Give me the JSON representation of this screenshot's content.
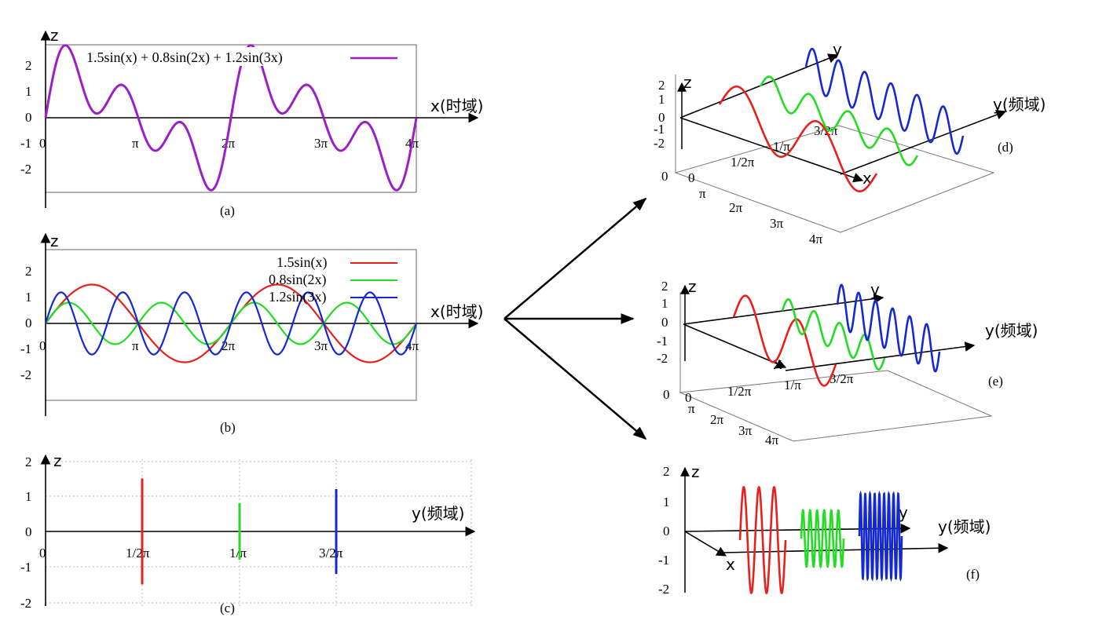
{
  "chart_data": [
    {
      "panel": "a",
      "type": "line",
      "caption": "(a)",
      "xlabel": "x(时域)",
      "ylabel": "z",
      "x_ticks": [
        "0",
        "π",
        "2π",
        "3π",
        "4π"
      ],
      "y_ticks": [
        "2",
        "1",
        "0",
        "-1",
        "-2"
      ],
      "xlim": [
        0,
        12.566
      ],
      "ylim": [
        -2.8,
        2.8
      ],
      "series": [
        {
          "name": "1.5sin(x) + 0.8sin(2x) + 1.2sin(3x)",
          "formula": "1.5sin(x)+0.8sin(2x)+1.2sin(3x)",
          "color": "#9b1fc8"
        }
      ],
      "legend_position": "top"
    },
    {
      "panel": "b",
      "type": "line",
      "caption": "(b)",
      "xlabel": "x(时域)",
      "ylabel": "z",
      "x_ticks": [
        "0",
        "π",
        "2π",
        "3π",
        "4π"
      ],
      "y_ticks": [
        "2",
        "1",
        "0",
        "-1",
        "-2"
      ],
      "xlim": [
        0,
        12.566
      ],
      "ylim": [
        -2.8,
        2.8
      ],
      "series": [
        {
          "name": "1.5sin(x)",
          "amplitude": 1.5,
          "frequency": 1,
          "color": "#e8201c"
        },
        {
          "name": "0.8sin(2x)",
          "amplitude": 0.8,
          "frequency": 2,
          "color": "#22dd22"
        },
        {
          "name": "1.2sin(3x)",
          "amplitude": 1.2,
          "frequency": 3,
          "color": "#1428d4"
        }
      ],
      "legend_position": "top-right"
    },
    {
      "panel": "c",
      "type": "bar",
      "caption": "(c)",
      "xlabel": "y(频域)",
      "ylabel": "z",
      "x_ticks": [
        "0",
        "1/2π",
        "1/π",
        "3/2π"
      ],
      "y_ticks": [
        "2",
        "1",
        "0",
        "-1",
        "-2"
      ],
      "ylim": [
        -2,
        2
      ],
      "spectral_lines": [
        {
          "label": "1/2π",
          "low": -1.5,
          "high": 1.5,
          "color": "#e8201c"
        },
        {
          "label": "1/π",
          "low": -0.8,
          "high": 0.8,
          "color": "#22dd22"
        },
        {
          "label": "3/2π",
          "low": -1.2,
          "high": 1.2,
          "color": "#1428d4"
        }
      ],
      "grid": true
    },
    {
      "panel": "d",
      "type": "line",
      "caption": "(d)",
      "axis_labels": {
        "x": "x",
        "y": "y",
        "y_domain": "y(频域)",
        "z": "z"
      },
      "z_ticks": [
        "2",
        "1",
        "0",
        "-1",
        "-2"
      ],
      "base_ticks": [
        "0",
        "0",
        "π",
        "2π",
        "3π",
        "4π"
      ],
      "freq_ticks": [
        "1/2π",
        "1/π",
        "3/2π"
      ]
    },
    {
      "panel": "e",
      "type": "line",
      "caption": "(e)",
      "axis_labels": {
        "x": "x",
        "y": "y",
        "y_domain": "y(频域)",
        "z": "z"
      },
      "z_ticks": [
        "2",
        "1",
        "0",
        "-1",
        "-2"
      ],
      "base_ticks": [
        "0",
        "0",
        "π",
        "2π",
        "3π",
        "4π"
      ],
      "freq_ticks": [
        "1/2π",
        "1/π",
        "3/2π"
      ]
    },
    {
      "panel": "f",
      "type": "line",
      "caption": "(f)",
      "axis_labels": {
        "x": "x",
        "y": "y",
        "y_domain": "y(频域)",
        "z": "z"
      },
      "z_ticks": [
        "2",
        "1",
        "0",
        "-1",
        "-2"
      ]
    }
  ],
  "colors": {
    "composite": "#9b1fc8",
    "red": "#e8201c",
    "green": "#22dd22",
    "blue": "#1428d4"
  }
}
